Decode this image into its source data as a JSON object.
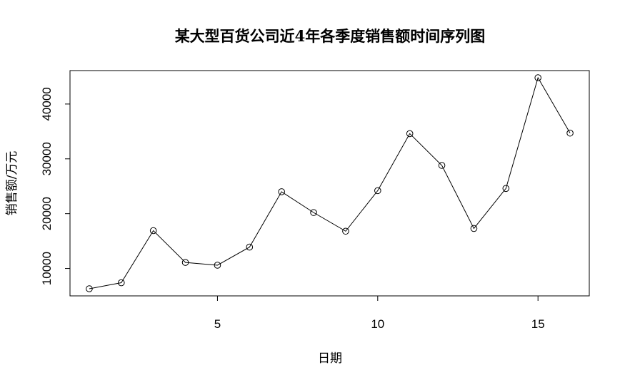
{
  "chart_data": {
    "type": "line",
    "title": "某大型百货公司近4年各季度销售额时间序列图",
    "xlabel": "日期",
    "ylabel": "销售额/万元",
    "x": [
      1,
      2,
      3,
      4,
      5,
      6,
      7,
      8,
      9,
      10,
      11,
      12,
      13,
      14,
      15,
      16
    ],
    "series": [
      {
        "values": [
          6300,
          7400,
          16900,
          11100,
          10600,
          13900,
          24000,
          20200,
          16800,
          24200,
          34600,
          28800,
          17300,
          24600,
          44800,
          34700
        ]
      }
    ],
    "xlim": [
      0.4,
      16.6
    ],
    "ylim": [
      5000,
      46100
    ],
    "xticks": [
      5,
      10,
      15
    ],
    "yticks": [
      10000,
      20000,
      30000,
      40000
    ],
    "markers": "open-circle",
    "grid": false,
    "legend": "none"
  }
}
